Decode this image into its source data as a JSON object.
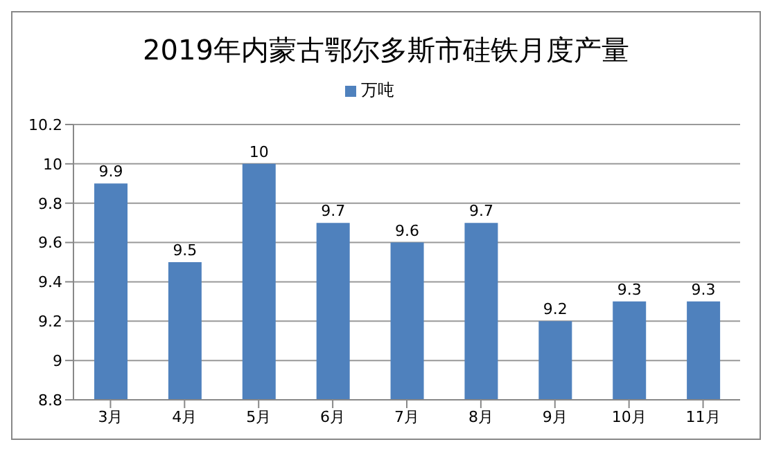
{
  "chart_data": {
    "type": "bar",
    "title": "2019年内蒙古鄂尔多斯市硅铁月度产量",
    "categories": [
      "3月",
      "4月",
      "5月",
      "6月",
      "7月",
      "8月",
      "9月",
      "10月",
      "11月"
    ],
    "series": [
      {
        "name": "万吨",
        "color": "#4f81bd",
        "values": [
          9.9,
          9.5,
          10,
          9.7,
          9.6,
          9.7,
          9.2,
          9.3,
          9.3
        ]
      }
    ],
    "ylim": [
      8.8,
      10.2
    ],
    "yticks": [
      8.8,
      9,
      9.2,
      9.4,
      9.6,
      9.8,
      10,
      10.2
    ],
    "grid": "y",
    "legend": "top",
    "data_labels": true
  }
}
